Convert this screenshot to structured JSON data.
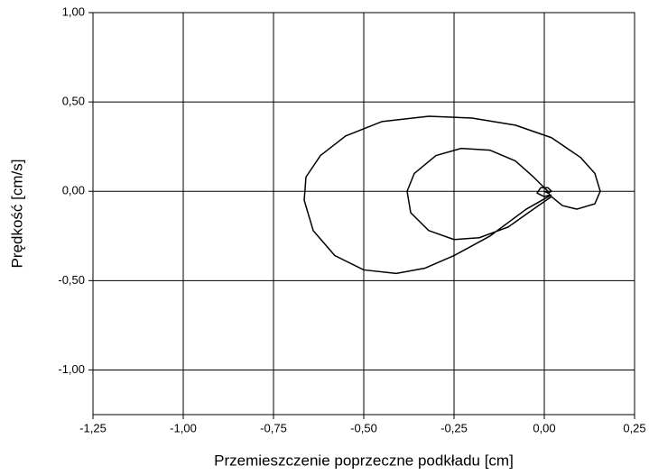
{
  "chart_data": {
    "type": "line",
    "xlabel": "Przemieszczenie poprzeczne podkładu [cm]",
    "ylabel": "Prędkość [cm/s]",
    "xlim": [
      -1.25,
      0.25
    ],
    "ylim": [
      -1.25,
      1
    ],
    "xticks": [
      {
        "value": -1.25,
        "label": "-1,25"
      },
      {
        "value": -1,
        "label": "-1,00"
      },
      {
        "value": -0.75,
        "label": "-0,75"
      },
      {
        "value": -0.5,
        "label": "-0,50"
      },
      {
        "value": -0.25,
        "label": "-0,25"
      },
      {
        "value": 0,
        "label": "0,00"
      },
      {
        "value": 0.25,
        "label": "0,25"
      }
    ],
    "yticks": [
      {
        "value": -1,
        "label": "-1,00"
      },
      {
        "value": -0.5,
        "label": "-0,50"
      },
      {
        "value": 0,
        "label": "0,00"
      },
      {
        "value": 0.5,
        "label": "0,50"
      },
      {
        "value": 1,
        "label": "1,00"
      }
    ],
    "grid": true,
    "series": [
      {
        "color": "#000000",
        "x": [
          0.02,
          -0.05,
          -0.15,
          -0.25,
          -0.33,
          -0.41,
          -0.5,
          -0.58,
          -0.64,
          -0.665,
          -0.66,
          -0.62,
          -0.55,
          -0.45,
          -0.32,
          -0.2,
          -0.08,
          0.02,
          0.1,
          0.14,
          0.155,
          0.14,
          0.09,
          0.05,
          0.02,
          -0.03,
          -0.1,
          -0.18,
          -0.25,
          -0.32,
          -0.37,
          -0.38,
          -0.36,
          -0.3,
          -0.23,
          -0.15,
          -0.08,
          -0.03,
          0.0,
          0.01,
          0.015,
          0.0,
          -0.02,
          -0.01,
          0.01,
          0.02,
          0.01,
          0.0
        ],
        "values": [
          -0.02,
          -0.1,
          -0.25,
          -0.36,
          -0.43,
          -0.46,
          -0.44,
          -0.36,
          -0.22,
          -0.05,
          0.08,
          0.2,
          0.31,
          0.39,
          0.42,
          0.41,
          0.37,
          0.3,
          0.19,
          0.1,
          0.0,
          -0.07,
          -0.1,
          -0.08,
          -0.03,
          -0.1,
          -0.2,
          -0.26,
          -0.27,
          -0.22,
          -0.12,
          0.0,
          0.1,
          0.2,
          0.24,
          0.23,
          0.17,
          0.08,
          0.02,
          0.0,
          -0.02,
          -0.03,
          -0.01,
          0.02,
          0.02,
          0.0,
          -0.01,
          0.0
        ]
      }
    ]
  }
}
